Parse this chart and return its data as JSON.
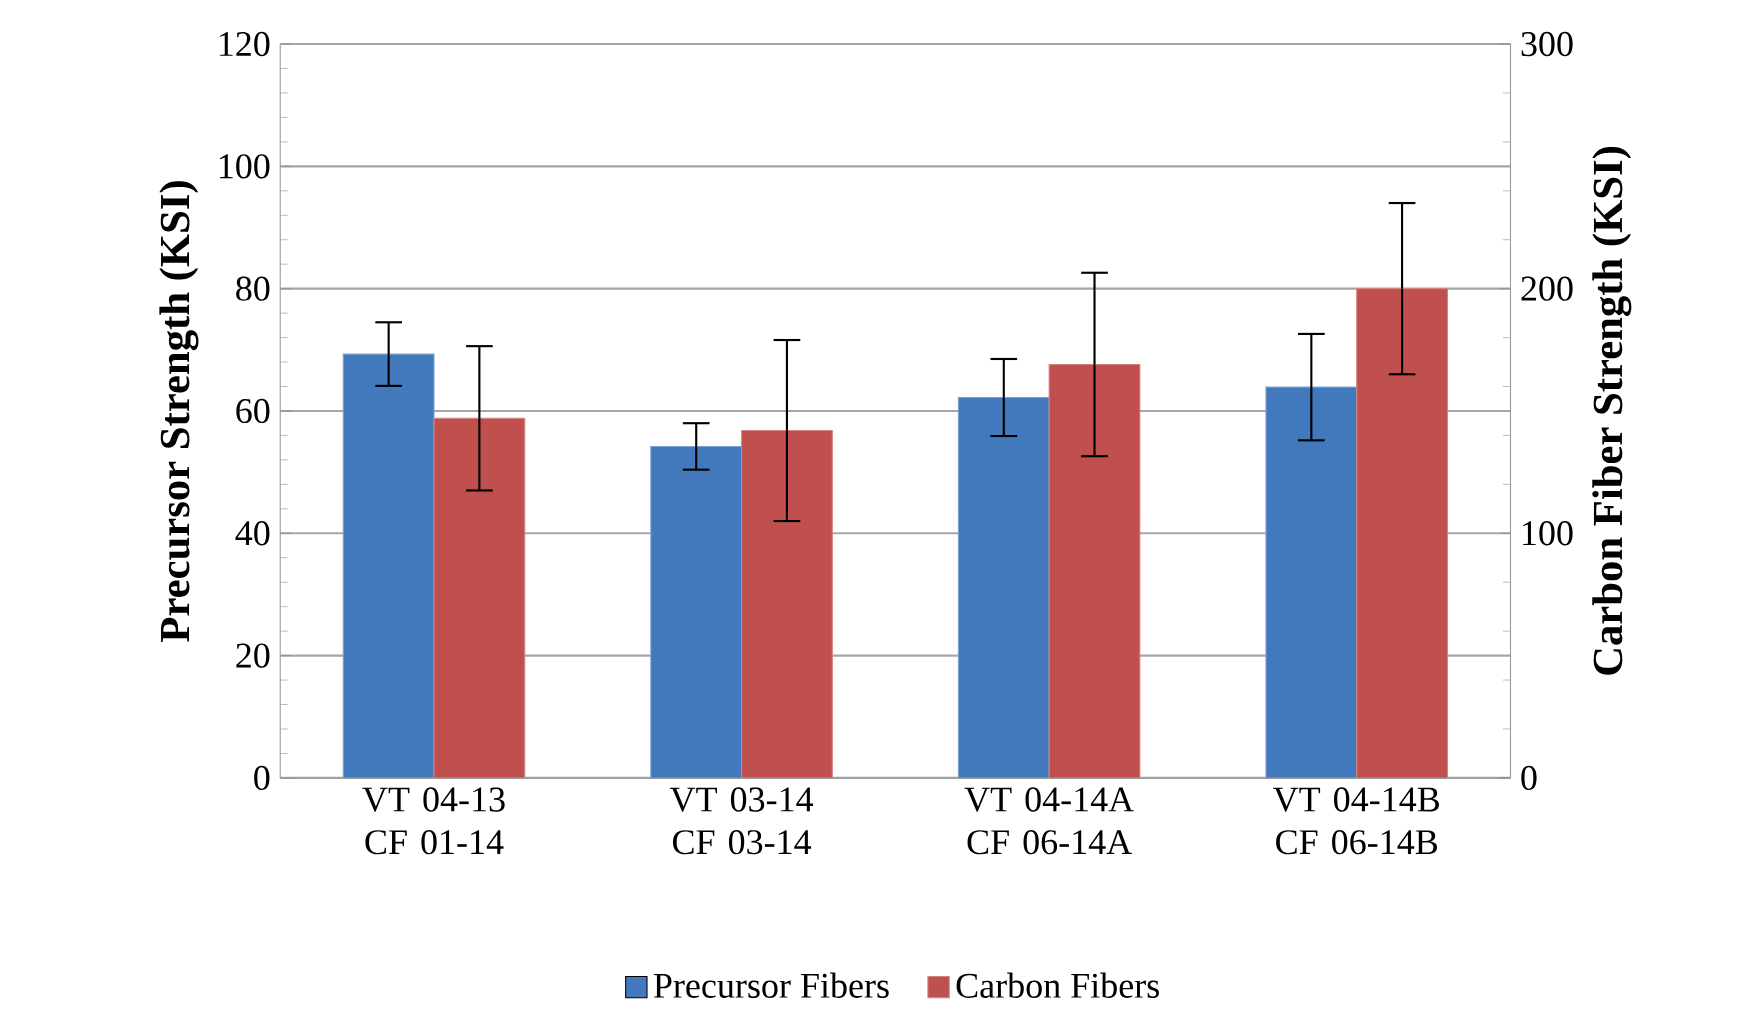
{
  "chart_data": {
    "type": "bar",
    "categories": [
      "VT 04-13 CF 01-14",
      "VT 03-14 CF 03-14",
      "VT 04-14A CF 06-14A",
      "VT 04-14B CF 06-14B"
    ],
    "series": [
      {
        "name": "Precursor Fibers",
        "color": "#4279bd",
        "values": [
          69.3,
          54.2,
          62.2,
          63.9
        ],
        "errors": [
          5.2,
          3.8,
          6.3,
          8.7
        ]
      },
      {
        "name": "Carbon Fibers",
        "color": "#c0504d",
        "axis": "y2",
        "values": [
          147,
          142,
          169,
          200
        ],
        "errors": [
          29.5,
          37,
          37.5,
          35
        ]
      }
    ],
    "ylabel": "Precursor Strength (KSI)",
    "y2label": "Carbon Fiber Strength (KSI)",
    "ylim": [
      0,
      120
    ],
    "yticks": [
      0,
      20,
      40,
      60,
      80,
      100,
      120
    ],
    "y2lim": [
      0,
      300
    ],
    "y2ticks": [
      0,
      100,
      200,
      300
    ],
    "grid": "y",
    "legend": "bottom"
  }
}
